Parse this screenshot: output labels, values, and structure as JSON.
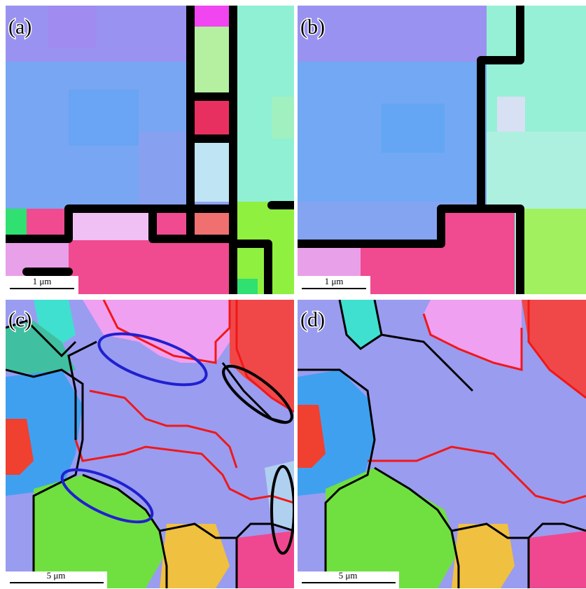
{
  "panels": [
    {
      "label": "(a)",
      "scale_bar": "1 μm"
    },
    {
      "label": "(b)",
      "scale_bar": "1 μm"
    },
    {
      "label": "(c)",
      "scale_bar": "5 μm"
    },
    {
      "label": "(d)",
      "scale_bar": "5 μm"
    }
  ]
}
